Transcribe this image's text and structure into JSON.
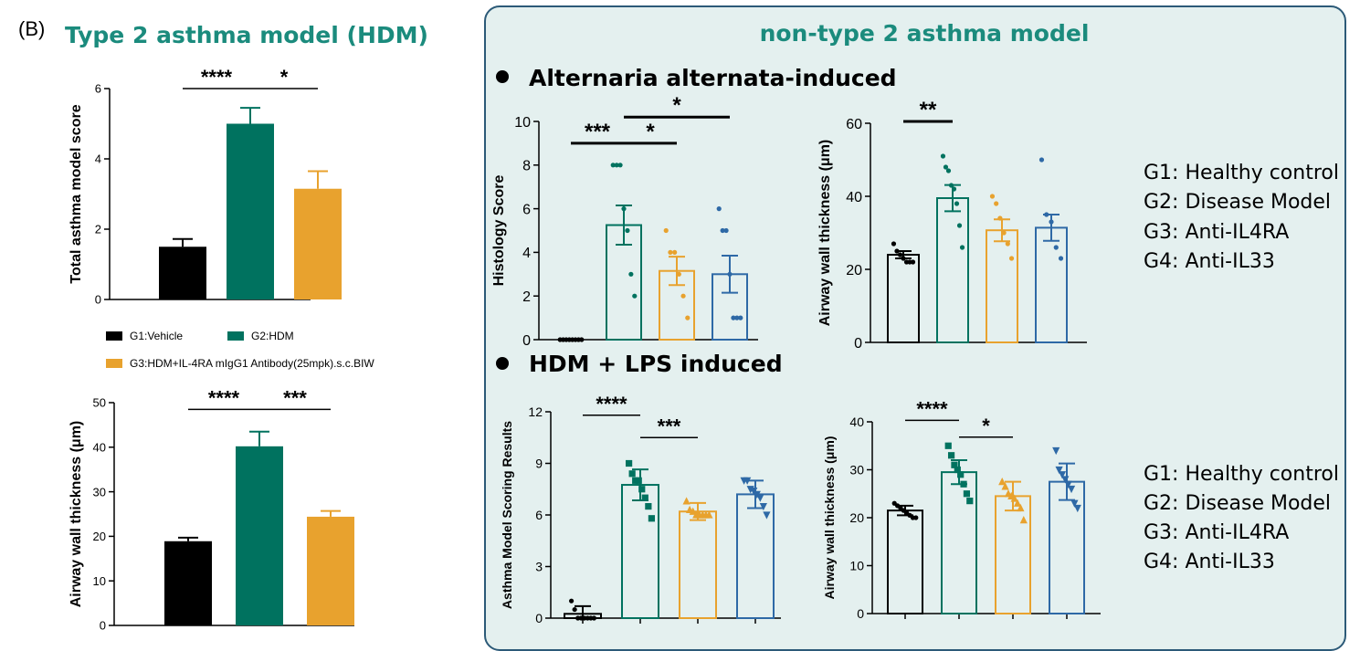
{
  "panel_label": "(B)",
  "left_title": "Type 2 asthma model (HDM)",
  "right_title": "non-type 2 asthma model",
  "sections": [
    "Alternaria alternata-induced",
    "HDM + LPS induced"
  ],
  "left_legend": [
    {
      "label": "G1:Vehicle",
      "color": "#000000"
    },
    {
      "label": "G2:HDM",
      "color": "#00725F"
    },
    {
      "label": "G3:HDM+IL-4RA mIgG1 Antibody(25mpk).s.c.BIW",
      "color": "#E8A22E"
    }
  ],
  "group_legend": [
    "G1: Healthy control",
    "G2: Disease Model",
    "G3: Anti-IL4RA",
    "G4: Anti-IL33"
  ],
  "colors": {
    "black": "#000000",
    "green": "#00725F",
    "orange": "#E8A22E",
    "blue": "#2E69A6",
    "panel_bg": "#E4F0EF",
    "panel_border": "#2C5A78",
    "title": "#1B8B7D"
  },
  "chart_data": [
    {
      "id": "c1",
      "type": "bar",
      "style": "filled",
      "ylabel": "Total asthma model score",
      "ylim": [
        0,
        6
      ],
      "yticks": [
        0,
        2,
        4,
        6
      ],
      "categories": [
        "G1",
        "G2",
        "G3"
      ],
      "values": [
        1.5,
        5.0,
        3.15
      ],
      "errors": [
        0.22,
        0.45,
        0.5
      ],
      "colors": [
        "#000000",
        "#00725F",
        "#E8A22E"
      ],
      "sig": [
        {
          "from": 0,
          "to": 1,
          "label": "****",
          "y": 6.0
        },
        {
          "from": 1,
          "to": 2,
          "label": "*",
          "y": 6.0
        }
      ]
    },
    {
      "id": "c2",
      "type": "bar",
      "style": "filled",
      "ylabel": "Airway wall thickness (μm)",
      "ylim": [
        0,
        50
      ],
      "yticks": [
        0,
        10,
        20,
        30,
        40,
        50
      ],
      "categories": [
        "G1",
        "G2",
        "G3"
      ],
      "values": [
        18.9,
        40.2,
        24.4
      ],
      "errors": [
        0.8,
        3.3,
        1.3
      ],
      "colors": [
        "#000000",
        "#00725F",
        "#E8A22E"
      ],
      "sig": [
        {
          "from": 0,
          "to": 1,
          "label": "****",
          "y": 48.5
        },
        {
          "from": 1,
          "to": 2,
          "label": "***",
          "y": 48.5
        }
      ]
    },
    {
      "id": "c3",
      "type": "bar",
      "style": "outline",
      "ylabel": "Histology Score",
      "ylim": [
        0,
        10
      ],
      "yticks": [
        0,
        2,
        4,
        6,
        8,
        10
      ],
      "categories": [
        "G1",
        "G2",
        "G3",
        "G4"
      ],
      "values": [
        0,
        5.25,
        3.15,
        3.0
      ],
      "errors": [
        0,
        0.9,
        0.65,
        0.85
      ],
      "colors": [
        "#000000",
        "#00725F",
        "#E8A22E",
        "#2E69A6"
      ],
      "marker": "circle",
      "points": [
        [
          0,
          0,
          0,
          0,
          0,
          0,
          0,
          0
        ],
        [
          8,
          8,
          8,
          6,
          5,
          3,
          2
        ],
        [
          5,
          4,
          4,
          3,
          2,
          1
        ],
        [
          6,
          5,
          5,
          3,
          1,
          1,
          1
        ]
      ],
      "sig": [
        {
          "from": 0,
          "to": 1,
          "label": "***",
          "y": 9.0
        },
        {
          "from": 1,
          "to": 2,
          "label": "*",
          "y": 9.0
        },
        {
          "from": 1,
          "to": 3,
          "label": "*",
          "y": 10.2
        }
      ]
    },
    {
      "id": "c4",
      "type": "bar",
      "style": "outline",
      "ylabel": "Airway wall thickness (μm)",
      "ylim": [
        0,
        60
      ],
      "yticks": [
        0,
        20,
        40,
        60
      ],
      "categories": [
        "G1",
        "G2",
        "G3",
        "G4"
      ],
      "values": [
        24.0,
        39.5,
        30.7,
        31.4
      ],
      "errors": [
        1.0,
        3.6,
        3.0,
        3.6
      ],
      "colors": [
        "#000000",
        "#00725F",
        "#E8A22E",
        "#2E69A6"
      ],
      "marker": "circle",
      "points": [
        [
          27,
          25,
          24,
          23,
          22,
          22,
          22
        ],
        [
          51,
          48,
          47,
          43,
          42,
          38,
          32,
          26
        ],
        [
          40,
          38,
          34,
          30,
          27,
          23
        ],
        [
          50,
          35,
          33,
          26,
          23
        ]
      ],
      "sig": [
        {
          "from": 0,
          "to": 1,
          "label": "**",
          "y": 60.5
        }
      ]
    },
    {
      "id": "c5",
      "type": "bar",
      "style": "outline",
      "ylabel": "Asthma Model Scoring Results",
      "ylim": [
        0,
        12
      ],
      "yticks": [
        0,
        3,
        6,
        9,
        12
      ],
      "categories": [
        "G1",
        "G2",
        "G3",
        "G4"
      ],
      "values": [
        0.25,
        7.75,
        6.2,
        7.2
      ],
      "errors": [
        0.45,
        0.9,
        0.5,
        0.8
      ],
      "colors": [
        "#000000",
        "#00725F",
        "#E8A22E",
        "#2E69A6"
      ],
      "marker": "mixed",
      "points": [
        [
          1,
          0.5,
          0,
          0,
          0,
          0,
          0,
          0
        ],
        [
          9,
          8.4,
          8,
          8,
          7.5,
          7,
          6.5,
          5.8
        ],
        [
          6.8,
          6.3,
          6.2,
          6,
          6,
          6,
          6,
          6
        ],
        [
          8,
          8,
          7.5,
          7.4,
          7.2,
          7,
          6.5,
          6
        ]
      ],
      "sig": [
        {
          "from": 0,
          "to": 1,
          "label": "****",
          "y": 11.8
        },
        {
          "from": 1,
          "to": 2,
          "label": "***",
          "y": 10.5
        }
      ]
    },
    {
      "id": "c6",
      "type": "bar",
      "style": "outline",
      "ylabel": "Airway wall thickness (μm)",
      "ylim": [
        0,
        40
      ],
      "yticks": [
        0,
        10,
        20,
        30,
        40
      ],
      "categories": [
        "G1",
        "G2",
        "G3",
        "G4"
      ],
      "values": [
        21.5,
        29.5,
        24.5,
        27.5
      ],
      "errors": [
        1.0,
        2.5,
        3.0,
        3.8
      ],
      "colors": [
        "#000000",
        "#00725F",
        "#E8A22E",
        "#2E69A6"
      ],
      "marker": "mixed",
      "points": [
        [
          23,
          22.5,
          22,
          21.5,
          21,
          20.5,
          20,
          20
        ],
        [
          35,
          33,
          31,
          30,
          29,
          27,
          25,
          23.5
        ],
        [
          27.5,
          26.5,
          25,
          24.5,
          24,
          23,
          22,
          19.5
        ],
        [
          34,
          30,
          29,
          28,
          27,
          26,
          23,
          22
        ]
      ],
      "sig": [
        {
          "from": 0,
          "to": 1,
          "label": "****",
          "y": 40.3
        },
        {
          "from": 1,
          "to": 2,
          "label": "*",
          "y": 36.8
        }
      ]
    }
  ]
}
